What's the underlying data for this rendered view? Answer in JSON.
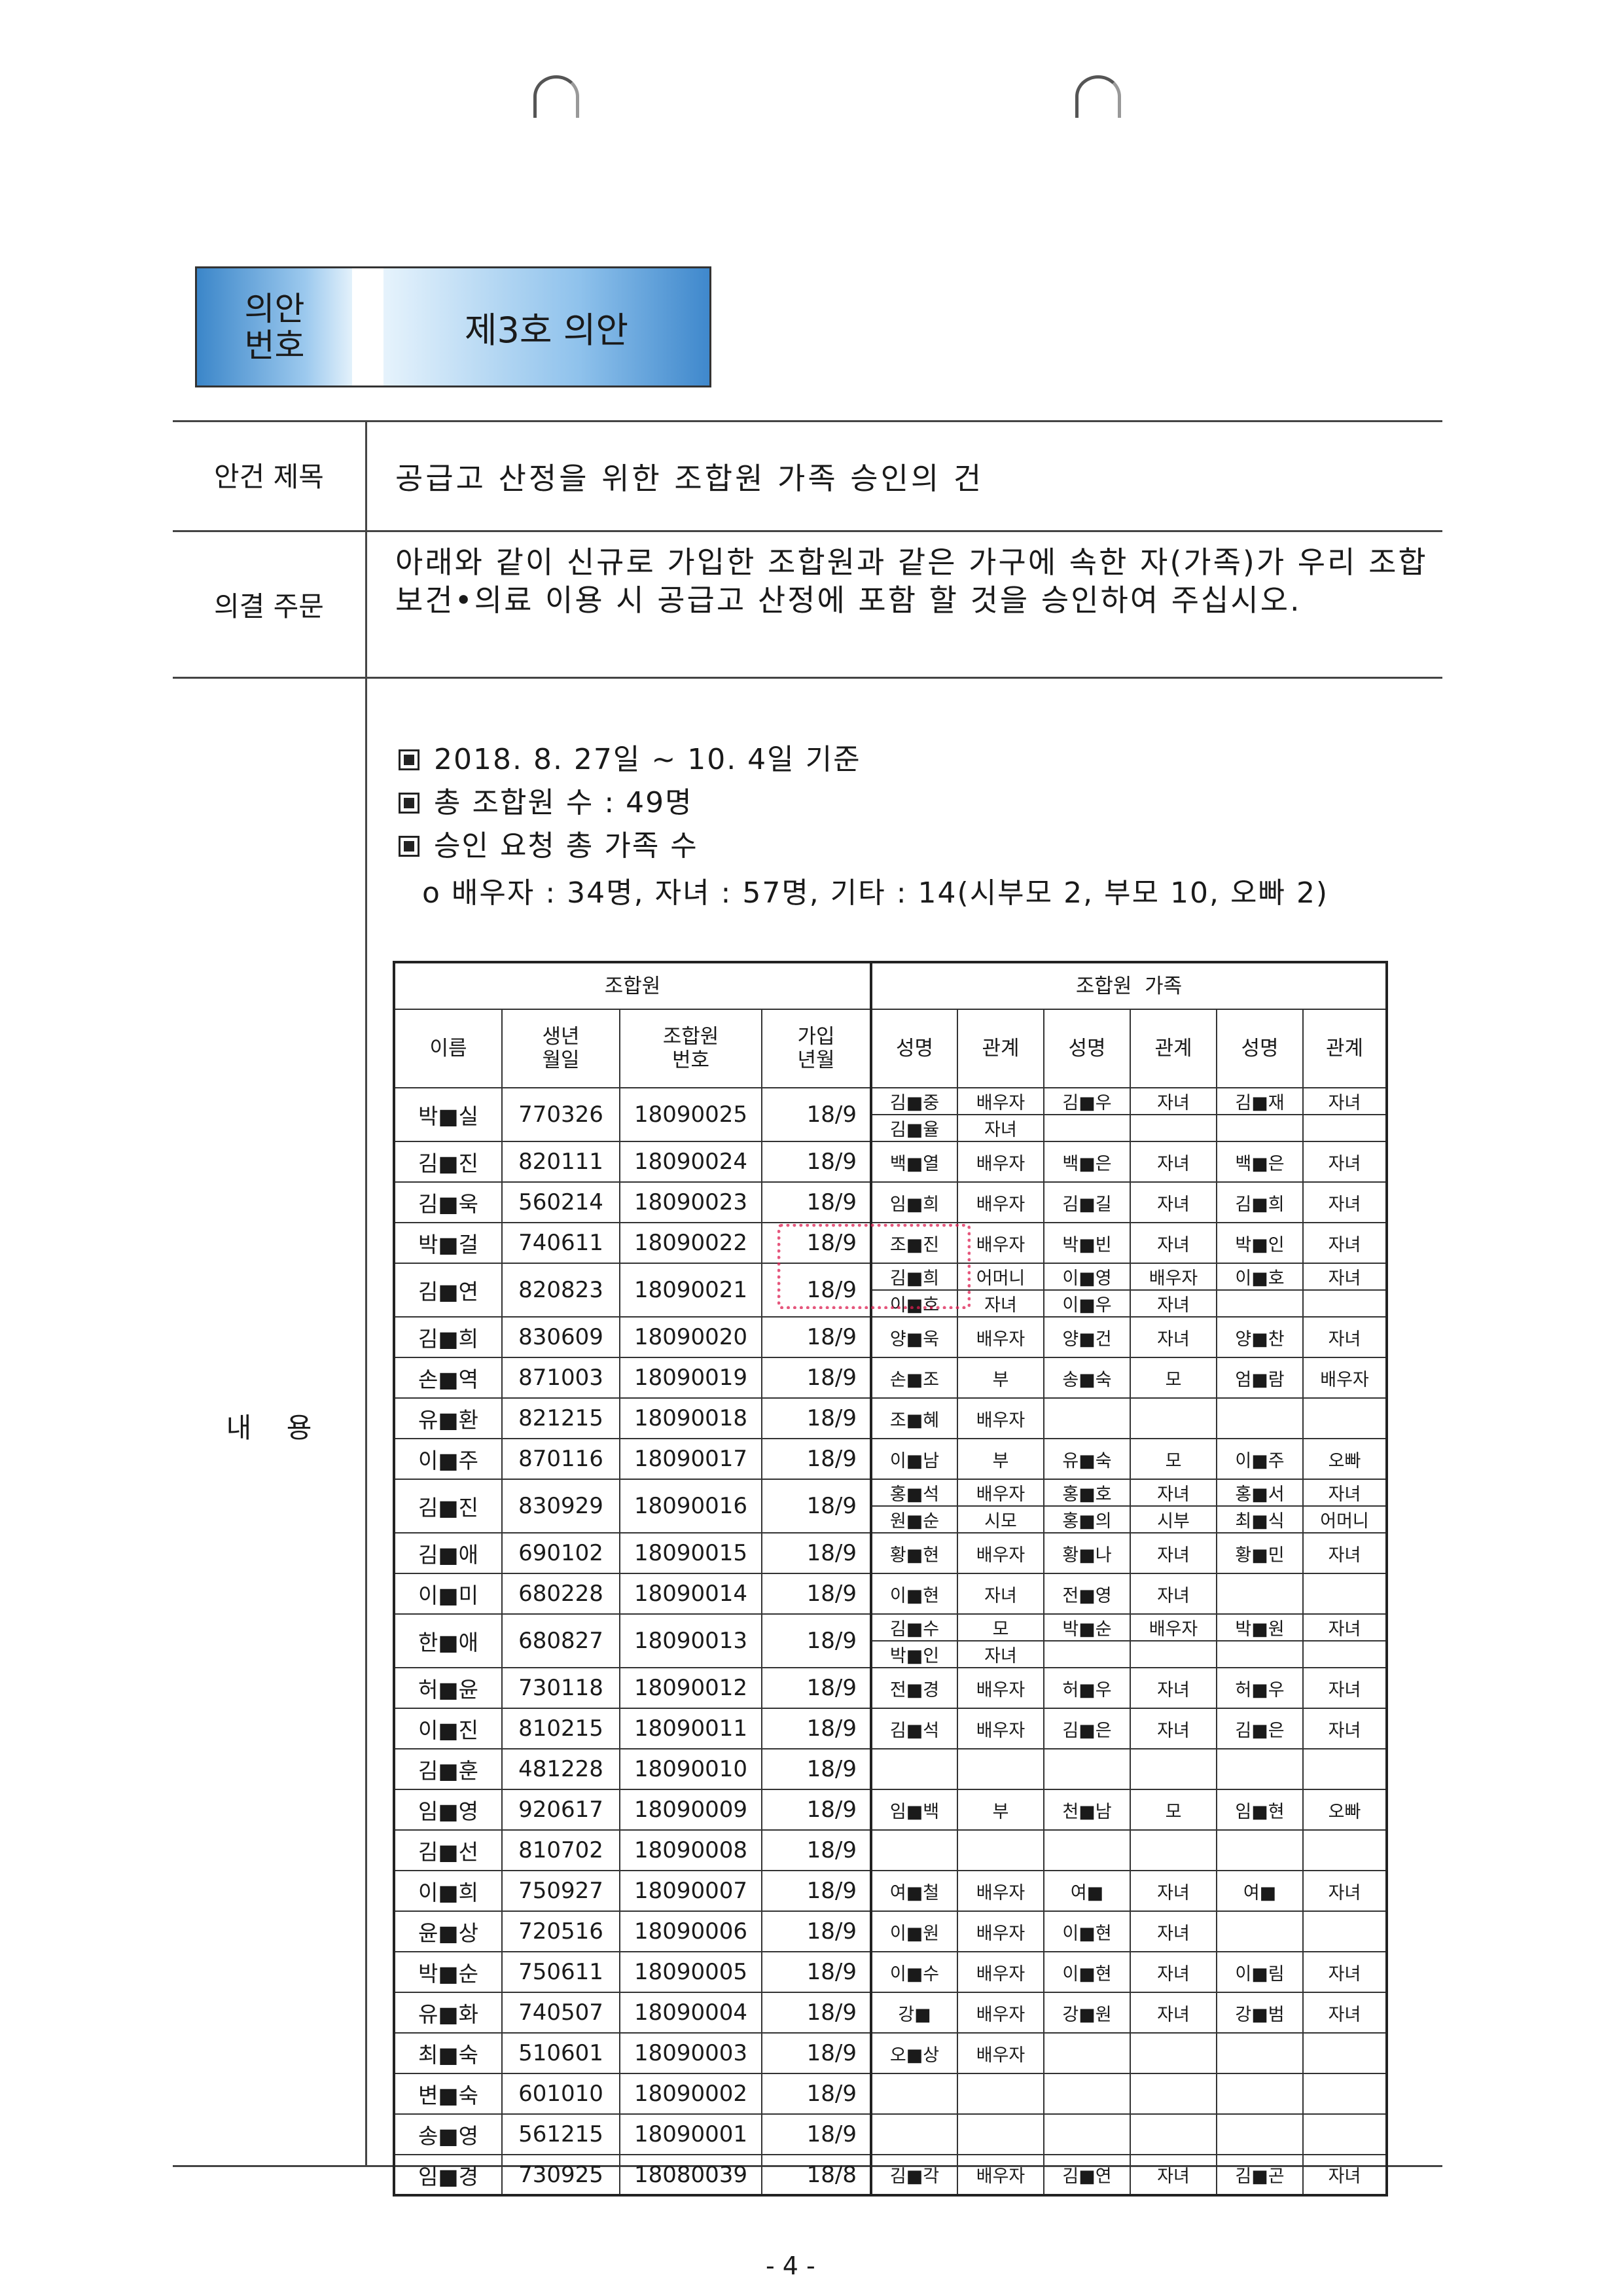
{
  "header": {
    "label": "의안\n번호",
    "label_lines": [
      "의안",
      "번호"
    ],
    "title": "제3호 의안"
  },
  "rows": {
    "subject_label": "안건 제목",
    "subject": "공급고 산정을 위한 조합원 가족 승인의 건",
    "resolution_label": "의결 주문",
    "resolution": "아래와 같이 신규로 가입한 조합원과 같은 가구에 속한 자(가족)가 우리 조합 보건•의료 이용 시 공급고 산정에 포함 할 것을 승인하여 주십시오.",
    "content_label": "내    용"
  },
  "bullets": [
    "2018. 8. 27일 ~ 10. 4일 기준",
    "총 조합원 수 : 49명",
    "승인 요청 총 가족 수"
  ],
  "sub_bullet": "o 배우자 : 34명, 자녀 : 57명, 기타 : 14(시부모 2, 부모 10, 오빠 2)",
  "table": {
    "group_member": "조합원",
    "group_family": "조합원  가족",
    "cols": [
      "이름",
      "생년\n월일",
      "조합원\n번호",
      "가입\n년월",
      "성명",
      "관계",
      "성명",
      "관계",
      "성명",
      "관계"
    ],
    "members": [
      {
        "name": "박■실",
        "birth": "770326",
        "id": "18090025",
        "joined": "18/9",
        "family": [
          [
            [
              "김■중",
              "배우자"
            ],
            [
              "김■우",
              "자녀"
            ],
            [
              "김■재",
              "자녀"
            ]
          ],
          [
            [
              "김■율",
              "자녀"
            ]
          ]
        ]
      },
      {
        "name": "김■진",
        "birth": "820111",
        "id": "18090024",
        "joined": "18/9",
        "family": [
          [
            [
              "백■열",
              "배우자"
            ],
            [
              "백■은",
              "자녀"
            ],
            [
              "백■은",
              "자녀"
            ]
          ]
        ]
      },
      {
        "name": "김■욱",
        "birth": "560214",
        "id": "18090023",
        "joined": "18/9",
        "family": [
          [
            [
              "임■희",
              "배우자"
            ],
            [
              "김■길",
              "자녀"
            ],
            [
              "김■희",
              "자녀"
            ]
          ]
        ]
      },
      {
        "name": "박■걸",
        "birth": "740611",
        "id": "18090022",
        "joined": "18/9",
        "family": [
          [
            [
              "조■진",
              "배우자"
            ],
            [
              "박■빈",
              "자녀"
            ],
            [
              "박■인",
              "자녀"
            ]
          ]
        ]
      },
      {
        "name": "김■연",
        "birth": "820823",
        "id": "18090021",
        "joined": "18/9",
        "family": [
          [
            [
              "김■희",
              "어머니"
            ],
            [
              "이■영",
              "배우자"
            ],
            [
              "이■호",
              "자녀"
            ]
          ],
          [
            [
              "이■호",
              "자녀"
            ],
            [
              "이■우",
              "자녀"
            ]
          ]
        ]
      },
      {
        "name": "김■희",
        "birth": "830609",
        "id": "18090020",
        "joined": "18/9",
        "family": [
          [
            [
              "양■욱",
              "배우자"
            ],
            [
              "양■건",
              "자녀"
            ],
            [
              "양■찬",
              "자녀"
            ]
          ]
        ]
      },
      {
        "name": "손■역",
        "birth": "871003",
        "id": "18090019",
        "joined": "18/9",
        "family": [
          [
            [
              "손■조",
              "부"
            ],
            [
              "송■숙",
              "모"
            ],
            [
              "엄■람",
              "배우자"
            ]
          ]
        ]
      },
      {
        "name": "유■환",
        "birth": "821215",
        "id": "18090018",
        "joined": "18/9",
        "family": [
          [
            [
              "조■혜",
              "배우자"
            ]
          ]
        ]
      },
      {
        "name": "이■주",
        "birth": "870116",
        "id": "18090017",
        "joined": "18/9",
        "family": [
          [
            [
              "이■남",
              "부"
            ],
            [
              "유■숙",
              "모"
            ],
            [
              "이■주",
              "오빠"
            ]
          ]
        ]
      },
      {
        "name": "김■진",
        "birth": "830929",
        "id": "18090016",
        "joined": "18/9",
        "family": [
          [
            [
              "홍■석",
              "배우자"
            ],
            [
              "홍■호",
              "자녀"
            ],
            [
              "홍■서",
              "자녀"
            ]
          ],
          [
            [
              "원■순",
              "시모"
            ],
            [
              "홍■의",
              "시부"
            ],
            [
              "최■식",
              "어머니"
            ]
          ]
        ]
      },
      {
        "name": "김■애",
        "birth": "690102",
        "id": "18090015",
        "joined": "18/9",
        "family": [
          [
            [
              "황■현",
              "배우자"
            ],
            [
              "황■나",
              "자녀"
            ],
            [
              "황■민",
              "자녀"
            ]
          ]
        ]
      },
      {
        "name": "이■미",
        "birth": "680228",
        "id": "18090014",
        "joined": "18/9",
        "family": [
          [
            [
              "이■현",
              "자녀"
            ],
            [
              "전■영",
              "자녀"
            ]
          ]
        ]
      },
      {
        "name": "한■애",
        "birth": "680827",
        "id": "18090013",
        "joined": "18/9",
        "family": [
          [
            [
              "김■수",
              "모"
            ],
            [
              "박■순",
              "배우자"
            ],
            [
              "박■원",
              "자녀"
            ]
          ],
          [
            [
              "박■인",
              "자녀"
            ]
          ]
        ]
      },
      {
        "name": "허■윤",
        "birth": "730118",
        "id": "18090012",
        "joined": "18/9",
        "family": [
          [
            [
              "전■경",
              "배우자"
            ],
            [
              "허■우",
              "자녀"
            ],
            [
              "허■우",
              "자녀"
            ]
          ]
        ]
      },
      {
        "name": "이■진",
        "birth": "810215",
        "id": "18090011",
        "joined": "18/9",
        "family": [
          [
            [
              "김■석",
              "배우자"
            ],
            [
              "김■은",
              "자녀"
            ],
            [
              "김■은",
              "자녀"
            ]
          ]
        ]
      },
      {
        "name": "김■훈",
        "birth": "481228",
        "id": "18090010",
        "joined": "18/9",
        "family": []
      },
      {
        "name": "임■영",
        "birth": "920617",
        "id": "18090009",
        "joined": "18/9",
        "family": [
          [
            [
              "임■백",
              "부"
            ],
            [
              "천■남",
              "모"
            ],
            [
              "임■현",
              "오빠"
            ]
          ]
        ]
      },
      {
        "name": "김■선",
        "birth": "810702",
        "id": "18090008",
        "joined": "18/9",
        "family": []
      },
      {
        "name": "이■희",
        "birth": "750927",
        "id": "18090007",
        "joined": "18/9",
        "family": [
          [
            [
              "여■철",
              "배우자"
            ],
            [
              "여■",
              "자녀"
            ],
            [
              "여■",
              "자녀"
            ]
          ]
        ]
      },
      {
        "name": "윤■상",
        "birth": "720516",
        "id": "18090006",
        "joined": "18/9",
        "family": [
          [
            [
              "이■원",
              "배우자"
            ],
            [
              "이■현",
              "자녀"
            ]
          ]
        ]
      },
      {
        "name": "박■순",
        "birth": "750611",
        "id": "18090005",
        "joined": "18/9",
        "family": [
          [
            [
              "이■수",
              "배우자"
            ],
            [
              "이■현",
              "자녀"
            ],
            [
              "이■림",
              "자녀"
            ]
          ]
        ]
      },
      {
        "name": "유■화",
        "birth": "740507",
        "id": "18090004",
        "joined": "18/9",
        "family": [
          [
            [
              "강■",
              "배우자"
            ],
            [
              "강■원",
              "자녀"
            ],
            [
              "강■범",
              "자녀"
            ]
          ]
        ]
      },
      {
        "name": "최■숙",
        "birth": "510601",
        "id": "18090003",
        "joined": "18/9",
        "family": [
          [
            [
              "오■상",
              "배우자"
            ]
          ]
        ]
      },
      {
        "name": "변■숙",
        "birth": "601010",
        "id": "18090002",
        "joined": "18/9",
        "family": []
      },
      {
        "name": "송■영",
        "birth": "561215",
        "id": "18090001",
        "joined": "18/9",
        "family": []
      },
      {
        "name": "임■경",
        "birth": "730925",
        "id": "18080039",
        "joined": "18/8",
        "family": [
          [
            [
              "김■각",
              "배우자"
            ],
            [
              "김■연",
              "자녀"
            ],
            [
              "김■곤",
              "자녀"
            ]
          ]
        ]
      }
    ]
  },
  "page_number": "- 4 -",
  "colors": {
    "header_blue": "#3b86c9",
    "stamp_red": "#dc1e50"
  }
}
